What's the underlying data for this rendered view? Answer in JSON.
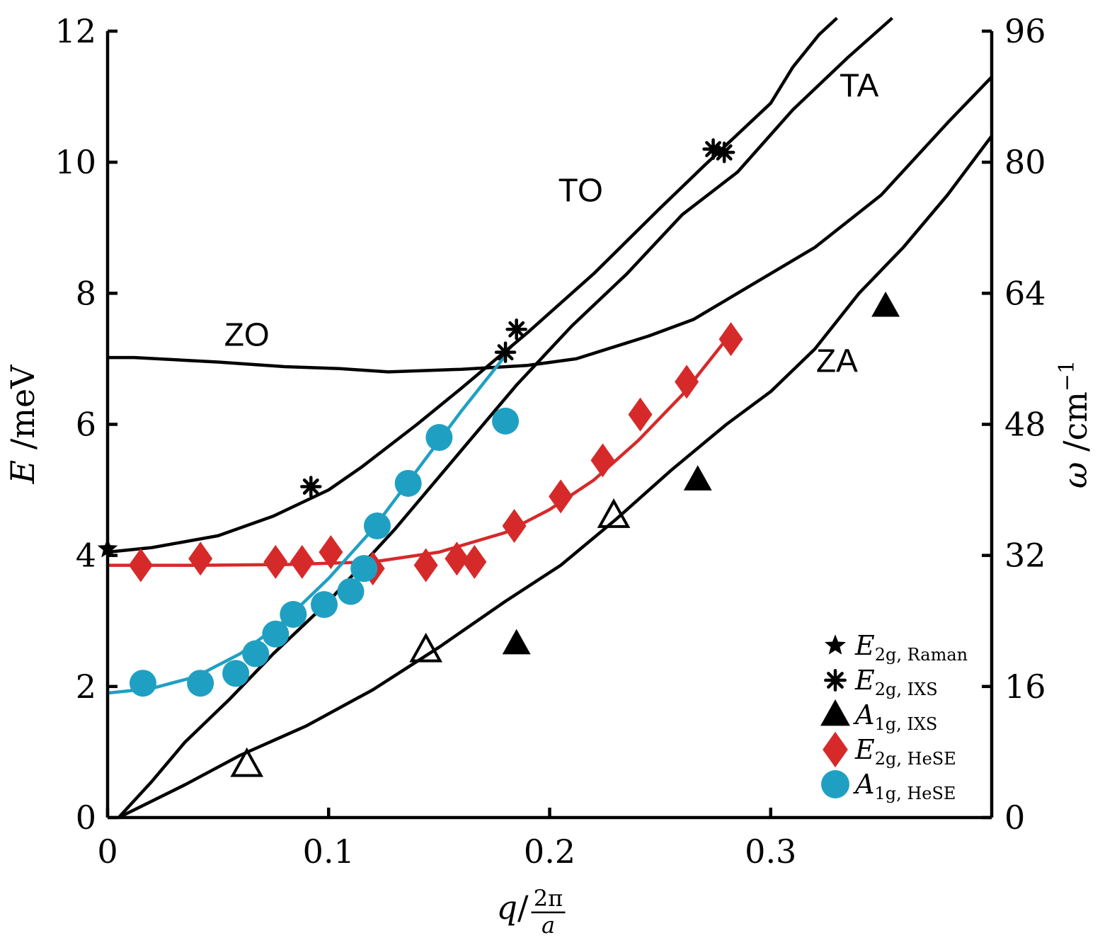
{
  "chart_data": {
    "type": "scatter",
    "xlabel": "q/(2π/a)",
    "xlabel_main": "q",
    "xlabel_num": "2π",
    "xlabel_den": "a",
    "ylabel": "E /meV",
    "ylabel_var": "E",
    "ylabel_unit": "/meV",
    "y2label": "ω /cm⁻¹",
    "y2label_var": "ω",
    "y2label_unit": "/cm",
    "y2label_exp": "−1",
    "xlim": [
      0,
      0.4
    ],
    "ylim": [
      0,
      12
    ],
    "y2lim": [
      0,
      96
    ],
    "xticks": [
      0,
      0.1,
      0.2,
      0.3
    ],
    "xtick_labels": [
      "0",
      "0.1",
      "0.2",
      "0.3"
    ],
    "yticks": [
      0,
      2,
      4,
      6,
      8,
      10,
      12
    ],
    "ytick_labels": [
      "0",
      "2",
      "4",
      "6",
      "8",
      "10",
      "12"
    ],
    "y2ticks": [
      0,
      16,
      32,
      48,
      64,
      80,
      96
    ],
    "y2tick_labels": [
      "0",
      "16",
      "32",
      "48",
      "64",
      "80",
      "96"
    ],
    "curves": [
      {
        "name": "ZO",
        "x": [
          0,
          0.012,
          0.05,
          0.08,
          0.105,
          0.127,
          0.16,
          0.19,
          0.212,
          0.245,
          0.265,
          0.29,
          0.32,
          0.35,
          0.38,
          0.4
        ],
        "y": [
          7.02,
          7.02,
          6.95,
          6.88,
          6.85,
          6.8,
          6.84,
          6.9,
          7.0,
          7.35,
          7.6,
          8.1,
          8.7,
          9.5,
          10.6,
          11.3
        ]
      },
      {
        "name": "TO",
        "x": [
          0,
          0.02,
          0.05,
          0.075,
          0.1,
          0.115,
          0.14,
          0.16,
          0.19,
          0.22,
          0.25,
          0.27,
          0.3,
          0.31,
          0.322,
          0.33
        ],
        "y": [
          4.05,
          4.12,
          4.3,
          4.6,
          5.0,
          5.35,
          6.0,
          6.55,
          7.4,
          8.3,
          9.3,
          9.95,
          10.9,
          11.45,
          11.95,
          12.2
        ]
      },
      {
        "name": "TA",
        "x": [
          0.005,
          0.02,
          0.035,
          0.055,
          0.075,
          0.1,
          0.13,
          0.16,
          0.185,
          0.21,
          0.235,
          0.26,
          0.285,
          0.31,
          0.335,
          0.355
        ],
        "y": [
          0,
          0.55,
          1.15,
          1.8,
          2.5,
          3.3,
          4.4,
          5.6,
          6.6,
          7.5,
          8.3,
          9.2,
          9.85,
          10.8,
          11.6,
          12.2
        ]
      },
      {
        "name": "ZA",
        "x": [
          0.005,
          0.02,
          0.035,
          0.06,
          0.09,
          0.12,
          0.15,
          0.18,
          0.205,
          0.23,
          0.255,
          0.28,
          0.3,
          0.32,
          0.34,
          0.36,
          0.38,
          0.4
        ],
        "y": [
          0,
          0.25,
          0.5,
          0.95,
          1.4,
          1.95,
          2.6,
          3.3,
          3.85,
          4.55,
          5.3,
          6.0,
          6.5,
          7.15,
          8.0,
          8.7,
          9.5,
          10.4
        ]
      },
      {
        "name": "E2g fit",
        "color": "#d62a2a",
        "x": [
          0,
          0.04,
          0.08,
          0.12,
          0.15,
          0.18,
          0.2,
          0.22,
          0.24,
          0.26,
          0.28
        ],
        "y": [
          3.85,
          3.85,
          3.86,
          3.9,
          4.05,
          4.35,
          4.7,
          5.15,
          5.75,
          6.45,
          7.3
        ]
      },
      {
        "name": "A1g fit",
        "color": "#1fa0c2",
        "x": [
          0,
          0.02,
          0.04,
          0.06,
          0.08,
          0.1,
          0.12,
          0.14,
          0.16,
          0.18
        ],
        "y": [
          1.9,
          1.97,
          2.15,
          2.5,
          3.0,
          3.65,
          4.4,
          5.3,
          6.2,
          7.05
        ]
      }
    ],
    "branch_labels": [
      {
        "text": "ZO",
        "x": 0.063,
        "y": 7.2
      },
      {
        "text": "TO",
        "x": 0.214,
        "y": 9.4
      },
      {
        "text": "TA",
        "x": 0.34,
        "y": 11.0
      },
      {
        "text": "ZA",
        "x": 0.33,
        "y": 6.8
      }
    ],
    "series": [
      {
        "name": "E2g,Raman",
        "marker": "star",
        "color": "#000000",
        "filled": true,
        "x": [
          0.0
        ],
        "y": [
          4.1
        ]
      },
      {
        "name": "E2g,IXS",
        "marker": "asterisk",
        "color": "#000000",
        "filled": true,
        "x": [
          0.092,
          0.18,
          0.185,
          0.274,
          0.279
        ],
        "y": [
          5.05,
          7.1,
          7.45,
          10.2,
          10.15
        ]
      },
      {
        "name": "A1g,IXS",
        "marker": "triangle",
        "color": "#000000",
        "filled": true,
        "x": [
          0.185,
          0.267,
          0.352
        ],
        "y": [
          2.65,
          5.15,
          7.8
        ]
      },
      {
        "name": "A1g,IXS open",
        "marker": "triangle",
        "color": "#000000",
        "filled": false,
        "x": [
          0.063,
          0.144,
          0.229
        ],
        "y": [
          0.8,
          2.55,
          4.6
        ]
      },
      {
        "name": "E2g,HeSE",
        "marker": "diamond",
        "color": "#d62a2a",
        "filled": true,
        "x": [
          0.015,
          0.042,
          0.076,
          0.088,
          0.101,
          0.12,
          0.144,
          0.158,
          0.166,
          0.184,
          0.205,
          0.224,
          0.241,
          0.262,
          0.282
        ],
        "y": [
          3.85,
          3.95,
          3.9,
          3.9,
          4.05,
          3.8,
          3.85,
          3.95,
          3.9,
          4.45,
          4.9,
          5.45,
          6.15,
          6.65,
          7.3
        ]
      },
      {
        "name": "A1g,HeSE",
        "marker": "circle",
        "color": "#1fa0c2",
        "filled": true,
        "x": [
          0.016,
          0.042,
          0.058,
          0.067,
          0.076,
          0.084,
          0.098,
          0.11,
          0.116,
          0.122,
          0.136,
          0.15,
          0.18
        ],
        "y": [
          2.05,
          2.05,
          2.2,
          2.5,
          2.8,
          3.1,
          3.25,
          3.45,
          3.8,
          4.45,
          5.1,
          5.8,
          6.05
        ]
      }
    ],
    "legend": {
      "placement": "bottom-right",
      "entries": [
        {
          "symbol": "E",
          "sub": "2g, Raman",
          "marker": "star",
          "color": "#000000"
        },
        {
          "symbol": "E",
          "sub": "2g, IXS",
          "marker": "asterisk",
          "color": "#000000"
        },
        {
          "symbol": "A",
          "sub": "1g, IXS",
          "marker": "triangle",
          "color": "#000000"
        },
        {
          "symbol": "E",
          "sub": "2g, HeSE",
          "marker": "diamond",
          "color": "#d62a2a"
        },
        {
          "symbol": "A",
          "sub": "1g, HeSE",
          "marker": "circle",
          "color": "#1fa0c2"
        }
      ]
    }
  }
}
